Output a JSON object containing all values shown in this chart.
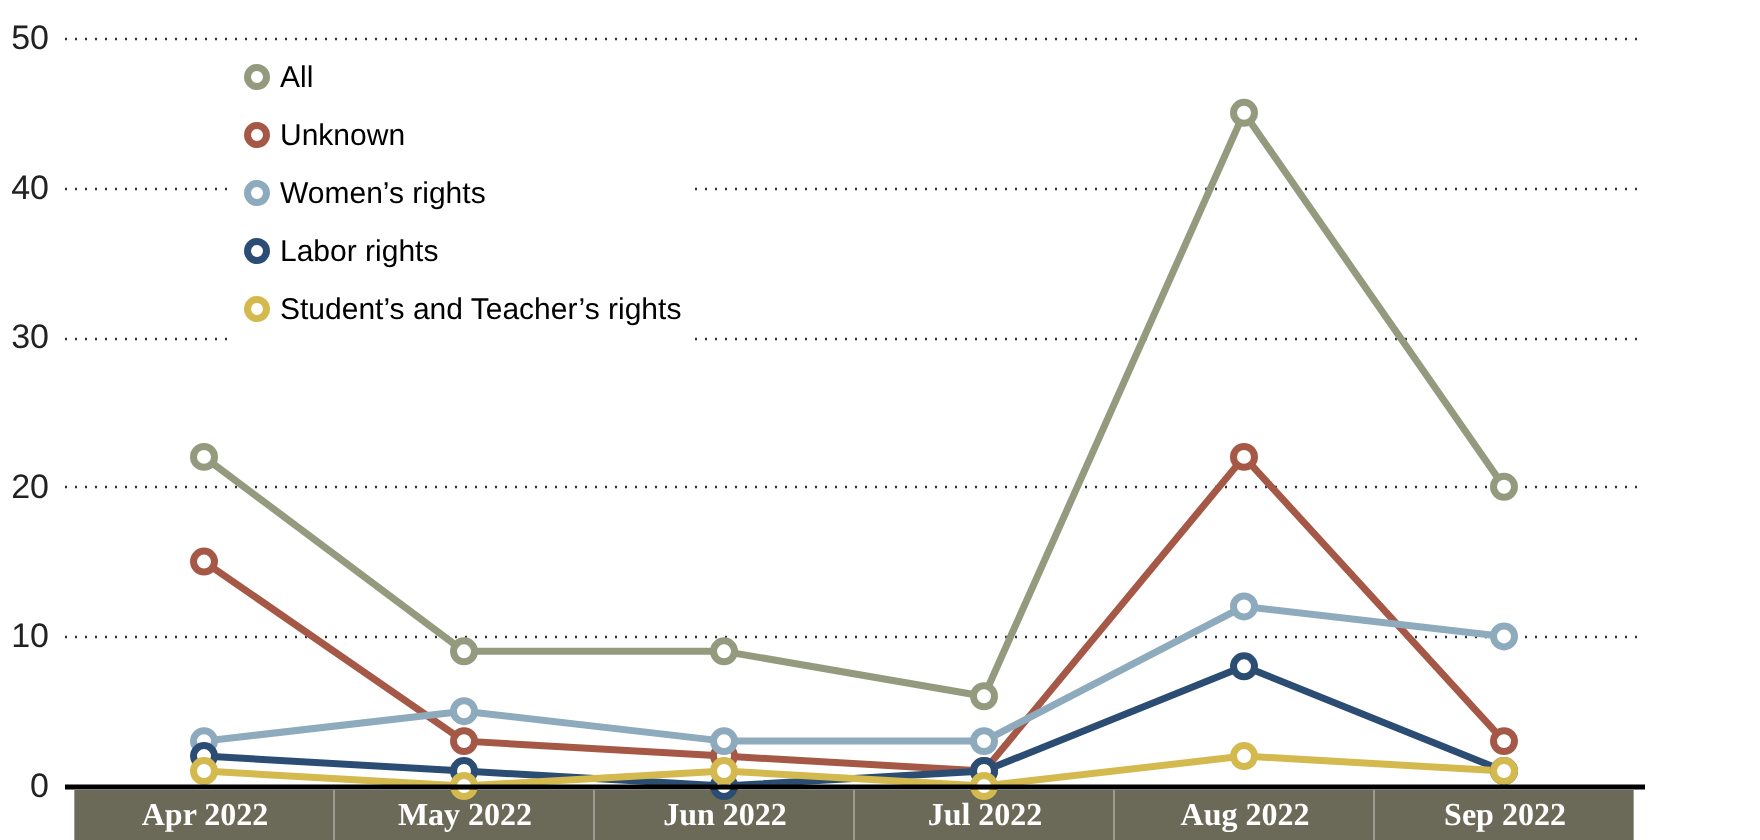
{
  "chart_data": {
    "type": "line",
    "categories": [
      "Apr 2022",
      "May 2022",
      "Jun 2022",
      "Jul 2022",
      "Aug 2022",
      "Sep 2022"
    ],
    "series": [
      {
        "name": "All",
        "color": "#949a7e",
        "values": [
          22,
          9,
          9,
          6,
          45,
          20
        ]
      },
      {
        "name": "Unknown",
        "color": "#a65847",
        "values": [
          15,
          3,
          2,
          1,
          22,
          3
        ]
      },
      {
        "name": "Women’s rights",
        "color": "#8eaabd",
        "values": [
          3,
          5,
          3,
          3,
          12,
          10
        ]
      },
      {
        "name": "Labor rights",
        "color": "#2c4d73",
        "values": [
          2,
          1,
          0,
          1,
          8,
          1
        ]
      },
      {
        "name": "Student’s and Teacher’s rights",
        "color": "#d4b94f",
        "values": [
          1,
          0,
          1,
          0,
          2,
          1
        ]
      }
    ],
    "ylim": [
      0,
      50
    ],
    "yticks": [
      0,
      10,
      20,
      30,
      40,
      50
    ],
    "grid": "y",
    "legend": "top left",
    "marker": "circle",
    "line_style": "solid"
  }
}
